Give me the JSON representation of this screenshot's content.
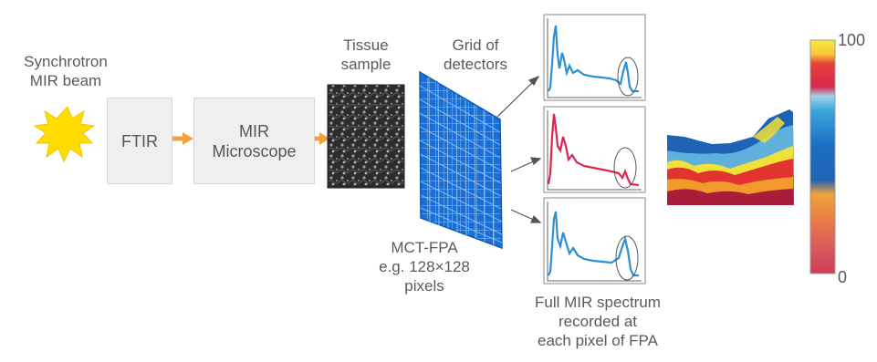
{
  "source": {
    "label_line1": "Synchrotron",
    "label_line2": "MIR beam"
  },
  "ftir": {
    "label": "FTIR"
  },
  "microscope": {
    "label_line1": "MIR",
    "label_line2": "Microscope"
  },
  "sample": {
    "label_line1": "Tissue",
    "label_line2": "sample"
  },
  "grid": {
    "label_line1": "Grid of",
    "label_line2": "detectors"
  },
  "fpa": {
    "label_line1": "MCT-FPA",
    "label_line2": "e.g. 128×128",
    "label_line3": "pixels"
  },
  "spectra": {
    "caption_line1": "Full MIR spectrum",
    "caption_line2": "recorded at",
    "caption_line3": "each pixel of FPA"
  },
  "colorbar": {
    "max_label": "100",
    "min_label": "0"
  },
  "colors": {
    "sun": "#ffdd00",
    "arrow": "#f4a03c",
    "detector": "#1a6fd6",
    "spectrum_blue": "#2e8fd4",
    "spectrum_red": "#d8284f"
  }
}
